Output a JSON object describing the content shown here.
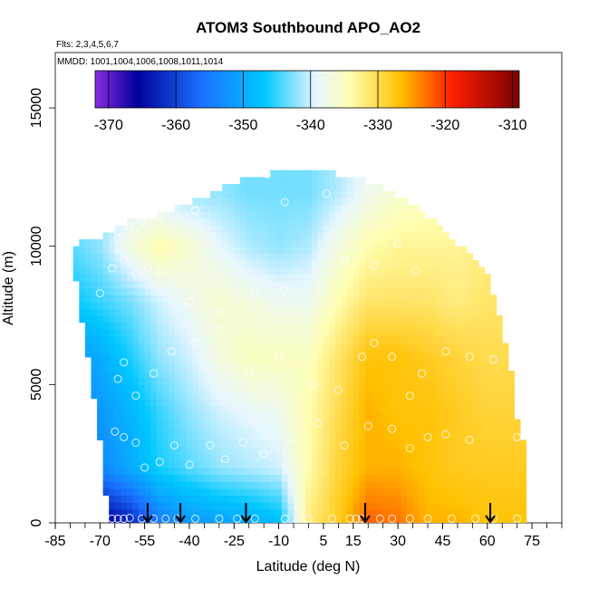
{
  "chart_data": {
    "type": "heatmap",
    "title": "ATOM3 Southbound APO_AO2",
    "subtitle_flights": "Flts: 2,3,4,5,6,7",
    "subtitle_mmdd": "MMDD: 1001,1004,1006,1008,1011,1014",
    "xlabel": "Latitude (deg N)",
    "ylabel": "Altitude (m)",
    "xlim": [
      -85,
      85
    ],
    "ylim": [
      0,
      17000
    ],
    "x_ticks": [
      -85,
      -70,
      -55,
      -40,
      -25,
      -10,
      5,
      15,
      30,
      45,
      60,
      75
    ],
    "y_ticks": [
      0,
      5000,
      10000,
      15000
    ],
    "colorbar": {
      "min": -372,
      "max": -309,
      "ticks": [
        -370,
        -360,
        -350,
        -340,
        -330,
        -320,
        -310
      ]
    },
    "profile_arrows_lat": [
      -54,
      -43,
      -21,
      19,
      61
    ],
    "envelope_top_by_lat": [
      [
        -80,
        10000
      ],
      [
        -75,
        10200
      ],
      [
        -70,
        10300
      ],
      [
        -65,
        10600
      ],
      [
        -60,
        10900
      ],
      [
        -55,
        11000
      ],
      [
        -50,
        11200
      ],
      [
        -45,
        11400
      ],
      [
        -40,
        11600
      ],
      [
        -35,
        11800
      ],
      [
        -30,
        12100
      ],
      [
        -25,
        12300
      ],
      [
        -20,
        12500
      ],
      [
        -15,
        12600
      ],
      [
        -10,
        12700
      ],
      [
        -5,
        12700
      ],
      [
        0,
        12700
      ],
      [
        5,
        12700
      ],
      [
        10,
        12600
      ],
      [
        15,
        12500
      ],
      [
        20,
        12300
      ],
      [
        25,
        12100
      ],
      [
        30,
        11800
      ],
      [
        35,
        11500
      ],
      [
        40,
        11100
      ],
      [
        45,
        10600
      ],
      [
        50,
        10100
      ],
      [
        55,
        9600
      ],
      [
        60,
        8900
      ],
      [
        63,
        8000
      ],
      [
        65,
        7000
      ],
      [
        68,
        5500
      ],
      [
        70,
        3800
      ],
      [
        72,
        3000
      ]
    ],
    "envelope_bottom_left_by_alt": [
      [
        0,
        -67
      ],
      [
        500,
        -67.5
      ],
      [
        1000,
        -68
      ],
      [
        2000,
        -69
      ],
      [
        3000,
        -70
      ],
      [
        4000,
        -71.5
      ],
      [
        5000,
        -72.5
      ],
      [
        6000,
        -74
      ],
      [
        7000,
        -75.5
      ],
      [
        8000,
        -77
      ],
      [
        9000,
        -78.5
      ],
      [
        10000,
        -80
      ]
    ],
    "field_grid": {
      "lat": [
        -80,
        -70,
        -60,
        -50,
        -40,
        -30,
        -20,
        -10,
        0,
        10,
        20,
        30,
        40,
        50,
        60,
        70
      ],
      "alt": [
        0,
        2000,
        4000,
        6000,
        8000,
        10000,
        12000
      ],
      "values": [
        [
          -371,
          -367,
          -363,
          -355,
          -352,
          -351,
          -350,
          -348,
          -332,
          -328,
          -322,
          -323,
          -326,
          -326,
          -327,
          -327
        ],
        [
          -357,
          -354,
          -350,
          -346,
          -344,
          -342,
          -341,
          -340,
          -334,
          -329,
          -326,
          -326,
          -327,
          -328,
          -328,
          -328
        ],
        [
          -354,
          -352,
          -349,
          -345,
          -342,
          -340,
          -339,
          -338,
          -334,
          -330,
          -326,
          -327,
          -327,
          -328,
          -329,
          -329
        ],
        [
          -352,
          -350,
          -346,
          -342,
          -340,
          -337,
          -335,
          -335,
          -335,
          -331,
          -327,
          -327,
          -328,
          -329,
          -330,
          -330
        ],
        [
          -347,
          -345,
          -343,
          -340,
          -338,
          -336,
          -337,
          -338,
          -338,
          -334,
          -331,
          -331,
          -331,
          -332,
          -331,
          -331
        ],
        [
          -344,
          -342,
          -337,
          -334,
          -336,
          -339,
          -341,
          -342,
          -341,
          -337,
          -334,
          -333,
          -333,
          -333,
          -332,
          -332
        ],
        [
          -342,
          -342,
          -340,
          -341,
          -342,
          -342,
          -343,
          -343,
          -343,
          -341,
          -338,
          -336,
          -335,
          -334,
          -333,
          -333
        ]
      ]
    },
    "observations": [
      [
        -66,
        150
      ],
      [
        -64,
        150
      ],
      [
        -62,
        150
      ],
      [
        -60,
        180
      ],
      [
        -56,
        150
      ],
      [
        -52,
        150
      ],
      [
        -48,
        150
      ],
      [
        -44,
        150
      ],
      [
        -38,
        150
      ],
      [
        -30,
        150
      ],
      [
        -24,
        150
      ],
      [
        -18,
        150
      ],
      [
        -8,
        150
      ],
      [
        0,
        150
      ],
      [
        8,
        150
      ],
      [
        14,
        150
      ],
      [
        16,
        150
      ],
      [
        18,
        150
      ],
      [
        24,
        150
      ],
      [
        28,
        150
      ],
      [
        34,
        150
      ],
      [
        40,
        150
      ],
      [
        48,
        150
      ],
      [
        56,
        150
      ],
      [
        62,
        150
      ],
      [
        70,
        150
      ],
      [
        -65,
        3300
      ],
      [
        -62,
        3100
      ],
      [
        -58,
        2900
      ],
      [
        -55,
        2000
      ],
      [
        -50,
        2200
      ],
      [
        -45,
        2800
      ],
      [
        -40,
        2100
      ],
      [
        -33,
        2800
      ],
      [
        -28,
        2300
      ],
      [
        -22,
        2900
      ],
      [
        -15,
        2500
      ],
      [
        -6,
        3000
      ],
      [
        3,
        3600
      ],
      [
        12,
        2800
      ],
      [
        20,
        3500
      ],
      [
        28,
        3400
      ],
      [
        34,
        2700
      ],
      [
        40,
        3100
      ],
      [
        46,
        3200
      ],
      [
        54,
        3000
      ],
      [
        70,
        3100
      ],
      [
        -64,
        5200
      ],
      [
        -62,
        5800
      ],
      [
        -58,
        4600
      ],
      [
        -52,
        5400
      ],
      [
        -46,
        6200
      ],
      [
        -38,
        6500
      ],
      [
        -30,
        7000
      ],
      [
        -20,
        5500
      ],
      [
        -10,
        6000
      ],
      [
        2,
        5000
      ],
      [
        10,
        4800
      ],
      [
        18,
        6000
      ],
      [
        22,
        6500
      ],
      [
        28,
        6000
      ],
      [
        34,
        4600
      ],
      [
        38,
        5400
      ],
      [
        46,
        6200
      ],
      [
        54,
        6000
      ],
      [
        62,
        5900
      ],
      [
        -70,
        8300
      ],
      [
        -66,
        9200
      ],
      [
        -62,
        9500
      ],
      [
        -58,
        9000
      ],
      [
        -54,
        9200
      ],
      [
        -50,
        9100
      ],
      [
        -40,
        8000
      ],
      [
        -30,
        7600
      ],
      [
        -18,
        8300
      ],
      [
        -8,
        8400
      ],
      [
        4,
        8500
      ],
      [
        12,
        9500
      ],
      [
        22,
        9300
      ],
      [
        30,
        10100
      ],
      [
        36,
        9100
      ],
      [
        -64,
        10300
      ],
      [
        -60,
        10700
      ],
      [
        -56,
        10900
      ],
      [
        -50,
        11100
      ],
      [
        -38,
        11300
      ],
      [
        -8,
        11600
      ],
      [
        6,
        11900
      ],
      [
        20,
        12200
      ],
      [
        -14,
        12600
      ],
      [
        26,
        12500
      ]
    ]
  }
}
